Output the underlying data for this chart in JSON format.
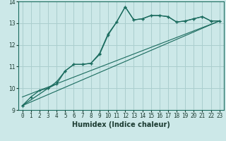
{
  "xlabel": "Humidex (Indice chaleur)",
  "ylabel": "",
  "xlim": [
    -0.5,
    23.5
  ],
  "ylim": [
    9,
    14
  ],
  "xticks": [
    0,
    1,
    2,
    3,
    4,
    5,
    6,
    7,
    8,
    9,
    10,
    11,
    12,
    13,
    14,
    15,
    16,
    17,
    18,
    19,
    20,
    21,
    22,
    23
  ],
  "yticks": [
    9,
    10,
    11,
    12,
    13,
    14
  ],
  "bg_color": "#cce8e8",
  "grid_color": "#aacece",
  "line_color": "#1a6b5e",
  "line1_x": [
    0,
    1,
    2,
    3,
    4,
    5,
    6,
    7,
    8,
    9,
    10,
    11,
    12,
    13,
    14,
    15,
    16,
    17,
    18,
    19,
    20,
    21,
    22,
    23
  ],
  "line1_y": [
    9.2,
    9.6,
    9.9,
    10.0,
    10.3,
    10.8,
    11.1,
    11.1,
    11.15,
    11.55,
    12.45,
    13.05,
    13.75,
    13.15,
    13.2,
    13.35,
    13.35,
    13.3,
    13.05,
    13.1,
    13.2,
    13.3,
    13.1,
    13.1
  ],
  "line2_x": [
    0,
    3,
    4,
    5,
    6,
    7,
    8,
    9,
    10,
    11,
    12,
    13,
    14,
    15,
    16,
    17,
    18,
    19,
    20,
    21,
    22,
    23
  ],
  "line2_y": [
    9.2,
    10.0,
    10.2,
    10.8,
    11.1,
    11.1,
    11.15,
    11.6,
    12.5,
    13.05,
    13.75,
    13.15,
    13.2,
    13.35,
    13.35,
    13.3,
    13.05,
    13.1,
    13.2,
    13.3,
    13.1,
    13.1
  ],
  "line3_x": [
    0,
    23
  ],
  "line3_y": [
    9.2,
    13.1
  ],
  "line4_x": [
    0,
    23
  ],
  "line4_y": [
    9.6,
    13.1
  ]
}
